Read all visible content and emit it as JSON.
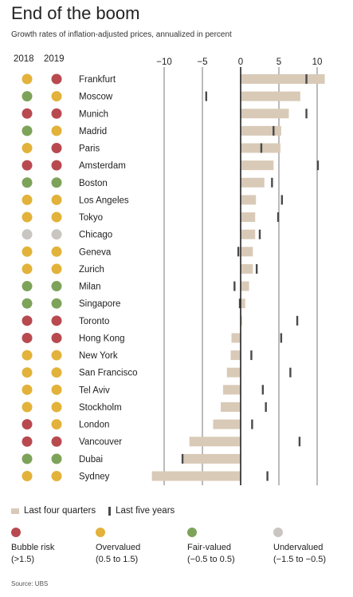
{
  "title": "End of the boom",
  "subtitle": "Growth rates of inflation-adjusted prices, annualized in percent",
  "years": [
    "2018",
    "2019"
  ],
  "colors": {
    "bubble": "#b84a4f",
    "overvalued": "#e2b23a",
    "fair": "#7da35a",
    "undervalued": "#c9c6c2",
    "bar": "#d9cab8",
    "tick": "#4a4a4a",
    "gridline": "#555555",
    "zero": "#222222"
  },
  "legend": {
    "bar_label": "Last four quarters",
    "tick_label": "Last five years"
  },
  "categories_legend": [
    {
      "key": "bubble",
      "label": "Bubble risk",
      "range": "(>1.5)"
    },
    {
      "key": "overvalued",
      "label": "Overvalued",
      "range": "(0.5 to 1.5)"
    },
    {
      "key": "fair",
      "label": "Fair-valued",
      "range": "(−0.5 to 0.5)"
    },
    {
      "key": "undervalued",
      "label": "Undervalued",
      "range": "(−1.5 to −0.5)"
    }
  ],
  "source": "Source: UBS",
  "chart_data": {
    "type": "bar",
    "orientation": "horizontal",
    "xlim": [
      -12,
      12
    ],
    "xticks": [
      -10,
      -5,
      0,
      5,
      10
    ],
    "xtick_labels": [
      "−10",
      "−5",
      "0",
      "5",
      "10"
    ],
    "gridlines": [
      -10,
      -5,
      5,
      10
    ],
    "series": [
      {
        "name": "Last four quarters",
        "style": "bar"
      },
      {
        "name": "Last five years",
        "style": "tick"
      }
    ],
    "rows": [
      {
        "city": "Frankfurt",
        "y2018": "overvalued",
        "y2019": "bubble",
        "four_quarters": 11.0,
        "five_years": 8.6
      },
      {
        "city": "Moscow",
        "y2018": "fair",
        "y2019": "overvalued",
        "four_quarters": 7.8,
        "five_years": -4.5
      },
      {
        "city": "Munich",
        "y2018": "bubble",
        "y2019": "bubble",
        "four_quarters": 6.3,
        "five_years": 8.6
      },
      {
        "city": "Madrid",
        "y2018": "fair",
        "y2019": "overvalued",
        "four_quarters": 5.3,
        "five_years": 4.3
      },
      {
        "city": "Paris",
        "y2018": "overvalued",
        "y2019": "bubble",
        "four_quarters": 5.2,
        "five_years": 2.7
      },
      {
        "city": "Amsterdam",
        "y2018": "bubble",
        "y2019": "bubble",
        "four_quarters": 4.3,
        "five_years": 10.1
      },
      {
        "city": "Boston",
        "y2018": "fair",
        "y2019": "fair",
        "four_quarters": 3.1,
        "five_years": 4.1
      },
      {
        "city": "Los Angeles",
        "y2018": "overvalued",
        "y2019": "overvalued",
        "four_quarters": 2.0,
        "five_years": 5.4
      },
      {
        "city": "Tokyo",
        "y2018": "overvalued",
        "y2019": "overvalued",
        "four_quarters": 1.9,
        "five_years": 4.9
      },
      {
        "city": "Chicago",
        "y2018": "undervalued",
        "y2019": "undervalued",
        "four_quarters": 1.9,
        "five_years": 2.5
      },
      {
        "city": "Geneva",
        "y2018": "overvalued",
        "y2019": "overvalued",
        "four_quarters": 1.6,
        "five_years": -0.3
      },
      {
        "city": "Zurich",
        "y2018": "overvalued",
        "y2019": "overvalued",
        "four_quarters": 1.6,
        "five_years": 2.1
      },
      {
        "city": "Milan",
        "y2018": "fair",
        "y2019": "fair",
        "four_quarters": 1.1,
        "five_years": -0.8
      },
      {
        "city": "Singapore",
        "y2018": "fair",
        "y2019": "fair",
        "four_quarters": 0.6,
        "five_years": -0.1
      },
      {
        "city": "Toronto",
        "y2018": "bubble",
        "y2019": "bubble",
        "four_quarters": 0.2,
        "five_years": 7.4
      },
      {
        "city": "Hong Kong",
        "y2018": "bubble",
        "y2019": "bubble",
        "four_quarters": -1.2,
        "five_years": 5.3
      },
      {
        "city": "New York",
        "y2018": "overvalued",
        "y2019": "overvalued",
        "four_quarters": -1.3,
        "five_years": 1.4
      },
      {
        "city": "San Francisco",
        "y2018": "overvalued",
        "y2019": "overvalued",
        "four_quarters": -1.8,
        "five_years": 6.5
      },
      {
        "city": "Tel Aviv",
        "y2018": "overvalued",
        "y2019": "overvalued",
        "four_quarters": -2.3,
        "five_years": 2.9
      },
      {
        "city": "Stockholm",
        "y2018": "overvalued",
        "y2019": "overvalued",
        "four_quarters": -2.6,
        "five_years": 3.3
      },
      {
        "city": "London",
        "y2018": "bubble",
        "y2019": "overvalued",
        "four_quarters": -3.6,
        "five_years": 1.5
      },
      {
        "city": "Vancouver",
        "y2018": "bubble",
        "y2019": "bubble",
        "four_quarters": -6.7,
        "five_years": 7.7
      },
      {
        "city": "Dubai",
        "y2018": "fair",
        "y2019": "fair",
        "four_quarters": -7.6,
        "five_years": -7.6
      },
      {
        "city": "Sydney",
        "y2018": "overvalued",
        "y2019": "overvalued",
        "four_quarters": -11.6,
        "five_years": 3.5
      }
    ]
  }
}
